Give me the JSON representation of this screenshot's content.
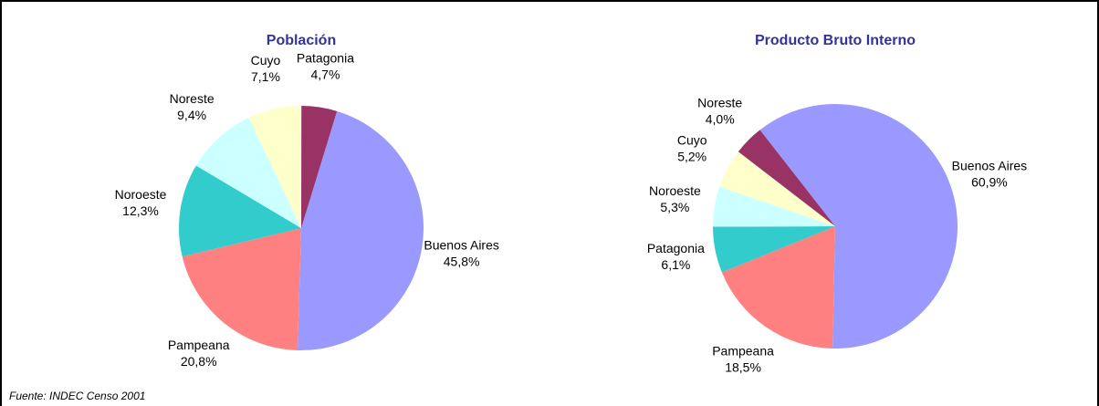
{
  "chart_data": [
    {
      "type": "pie",
      "title": "Población",
      "categories": [
        "Buenos Aires",
        "Pampeana",
        "Noroeste",
        "Noreste",
        "Cuyo",
        "Patagonia"
      ],
      "values": [
        45.8,
        20.8,
        12.3,
        9.4,
        7.1,
        4.7
      ],
      "value_labels": [
        "45,8%",
        "20,8%",
        "12,3%",
        "9,4%",
        "7,1%",
        "4,7%"
      ],
      "colors": [
        "#9999ff",
        "#ff8080",
        "#33cccc",
        "#ccffff",
        "#ffffcc",
        "#993366"
      ]
    },
    {
      "type": "pie",
      "title": "Producto Bruto Interno",
      "categories": [
        "Buenos Aires",
        "Pampeana",
        "Patagonia",
        "Noroeste",
        "Cuyo",
        "Noreste"
      ],
      "values": [
        60.9,
        18.5,
        6.1,
        5.3,
        5.2,
        4.0
      ],
      "value_labels": [
        "60,9%",
        "18,5%",
        "6,1%",
        "5,3%",
        "5,2%",
        "4,0%"
      ],
      "colors": [
        "#9999ff",
        "#ff8080",
        "#33cccc",
        "#ccffff",
        "#ffffcc",
        "#993366"
      ]
    }
  ],
  "source": "Fuente: INDEC Censo 2001"
}
